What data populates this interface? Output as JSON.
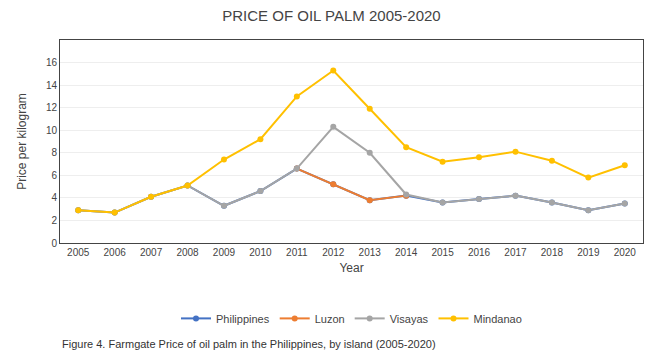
{
  "chart_data": {
    "type": "line",
    "title": "PRICE OF OIL PALM 2005-2020",
    "xlabel": "Year",
    "ylabel": "Price per kilogram",
    "caption": "Figure 4. Farmgate Price of oil palm in the Philippines, by island (2005-2020)",
    "x": [
      2005,
      2006,
      2007,
      2008,
      2009,
      2010,
      2011,
      2012,
      2013,
      2014,
      2015,
      2016,
      2017,
      2018,
      2019,
      2020
    ],
    "series": [
      {
        "name": "Philippines",
        "color": "#4472C4",
        "marker": "circle",
        "values": [
          2.9,
          2.7,
          4.1,
          5.1,
          3.3,
          4.6,
          6.6,
          5.2,
          3.8,
          4.2,
          3.6,
          3.9,
          4.2,
          3.6,
          2.9,
          3.5
        ]
      },
      {
        "name": "Luzon",
        "color": "#ED7D31",
        "marker": "circle",
        "values": [
          null,
          null,
          null,
          null,
          null,
          null,
          6.6,
          5.2,
          3.8,
          4.2,
          null,
          null,
          null,
          null,
          null,
          null
        ]
      },
      {
        "name": "Visayas",
        "color": "#A5A5A5",
        "marker": "circle",
        "values": [
          2.9,
          2.7,
          4.1,
          5.1,
          3.3,
          4.6,
          6.6,
          10.3,
          8.0,
          4.3,
          3.6,
          3.9,
          4.2,
          3.6,
          2.9,
          3.5
        ]
      },
      {
        "name": "Mindanao",
        "color": "#FFC000",
        "marker": "circle",
        "values": [
          2.9,
          2.7,
          4.1,
          5.1,
          7.4,
          9.2,
          13.0,
          15.3,
          11.9,
          8.5,
          7.2,
          7.6,
          8.1,
          7.3,
          5.8,
          6.9
        ]
      }
    ],
    "xlim": [
      2004.5,
      2020.5
    ],
    "xticks": [
      2005,
      2006,
      2007,
      2008,
      2009,
      2010,
      2011,
      2012,
      2013,
      2014,
      2015,
      2016,
      2017,
      2018,
      2019,
      2020
    ],
    "ylim": [
      0,
      18
    ],
    "yticks": [
      0,
      2,
      4,
      6,
      8,
      10,
      12,
      14,
      16
    ],
    "grid": true,
    "legend": "bottom"
  }
}
